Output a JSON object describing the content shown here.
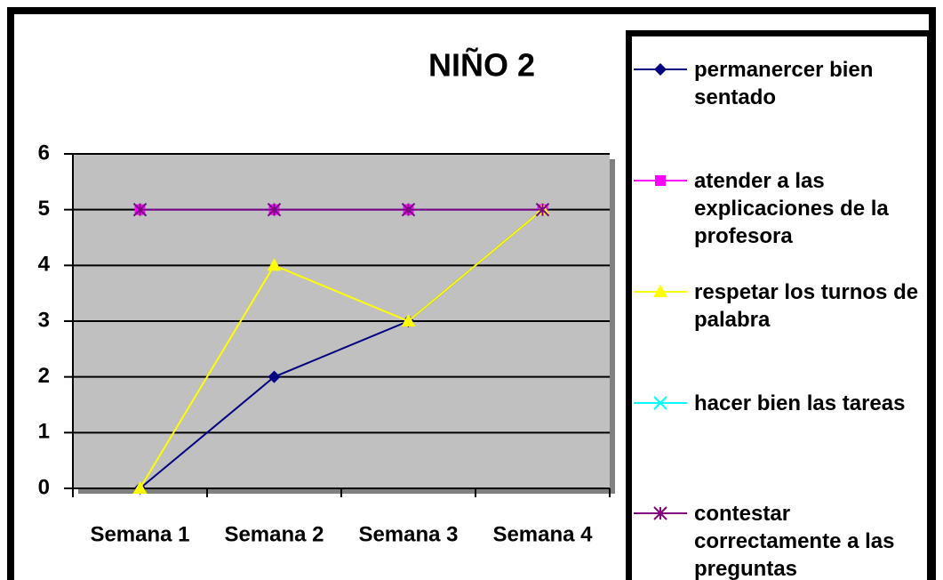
{
  "chart_data": {
    "type": "line",
    "title": "NIÑO 2",
    "categories": [
      "Semana 1",
      "Semana 2",
      "Semana 3",
      "Semana 4"
    ],
    "series": [
      {
        "name": "permanercer bien sentado",
        "color": "#000080",
        "marker": "diamond",
        "values": [
          0,
          2,
          3,
          5
        ]
      },
      {
        "name": "atender a las explicaciones de la profesora",
        "color": "#ff00ff",
        "marker": "square",
        "values": [
          5,
          5,
          5,
          5
        ]
      },
      {
        "name": "respetar los turnos de palabra",
        "color": "#ffff00",
        "marker": "triangle",
        "values": [
          0,
          4,
          3,
          5
        ]
      },
      {
        "name": "hacer bien las tareas",
        "color": "#00ffff",
        "marker": "x",
        "values": [
          5,
          5,
          5,
          5
        ]
      },
      {
        "name": "contestar correctamente a las preguntas",
        "color": "#800080",
        "marker": "star",
        "values": [
          5,
          5,
          5,
          5
        ]
      }
    ],
    "ylim": [
      0,
      6
    ],
    "yticks": [
      0,
      1,
      2,
      3,
      4,
      5,
      6
    ],
    "grid": true,
    "legend": "right"
  }
}
